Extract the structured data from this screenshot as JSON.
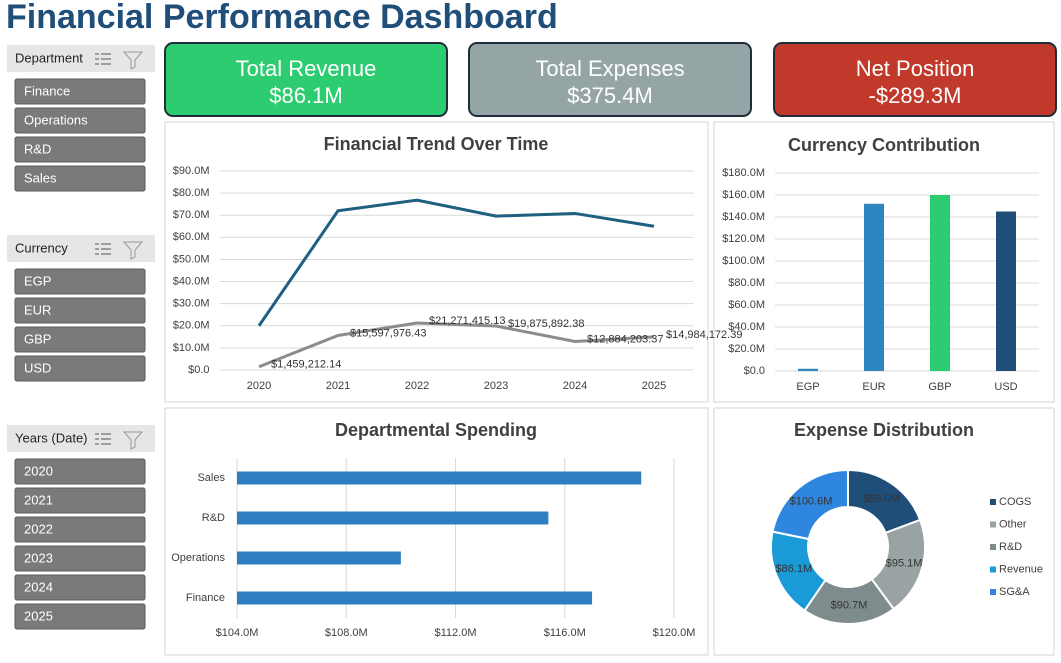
{
  "header": {
    "title": "Financial Performance Dashboard"
  },
  "slicers": [
    {
      "title": "Department",
      "items": [
        "Finance",
        "Operations",
        "R&D",
        "Sales"
      ]
    },
    {
      "title": "Currency",
      "items": [
        "EGP",
        "EUR",
        "GBP",
        "USD"
      ]
    },
    {
      "title": "Years (Date)",
      "items": [
        "2020",
        "2021",
        "2022",
        "2023",
        "2024",
        "2025"
      ]
    }
  ],
  "kpis": [
    {
      "label": "Total Revenue",
      "value": "$86.1M",
      "color": "#2ecc71"
    },
    {
      "label": "Total Expenses",
      "value": "$375.4M",
      "color": "#95a5a6"
    },
    {
      "label": "Net Position",
      "value": "-$289.3M",
      "color": "#c0392b"
    }
  ],
  "chart_data": [
    {
      "type": "line",
      "title": "Financial Trend Over Time",
      "categories": [
        "2020",
        "2021",
        "2022",
        "2023",
        "2024",
        "2025"
      ],
      "series": [
        {
          "color": "#1f5f7f",
          "values": [
            20,
            72,
            76.8,
            69.6,
            70.8,
            65
          ]
        },
        {
          "color": "#8c8c8c",
          "values": [
            1.45921214,
            15.59797643,
            21.27141513,
            19.87589238,
            12.88420337,
            14.98417239
          ],
          "value_labels": [
            "$1,459,212.14",
            "$15,597,976.43",
            "$21,271,415.13",
            "$19,875,892.38",
            "$12,884,203.37",
            "$14,984,172.39"
          ]
        }
      ],
      "ylim": [
        0,
        90
      ],
      "yticks": [
        {
          "value": 0,
          "label": "$0.0"
        },
        {
          "value": 10,
          "label": "$10.0M"
        },
        {
          "value": 20,
          "label": "$20.0M"
        },
        {
          "value": 30,
          "label": "$30.0M"
        },
        {
          "value": 40,
          "label": "$40.0M"
        },
        {
          "value": 50,
          "label": "$50.0M"
        },
        {
          "value": 60,
          "label": "$60.0M"
        },
        {
          "value": 70,
          "label": "$70.0M"
        },
        {
          "value": 80,
          "label": "$80.0M"
        },
        {
          "value": 90,
          "label": "$90.0M"
        }
      ],
      "grid": true
    },
    {
      "type": "bar",
      "title": "Currency Contribution",
      "categories": [
        "EGP",
        "EUR",
        "GBP",
        "USD"
      ],
      "values": [
        2,
        152,
        160,
        145
      ],
      "colors": [
        "#2e86c1",
        "#2e86c1",
        "#2ecc71",
        "#1f4e79"
      ],
      "ylim": [
        0,
        180
      ],
      "yticks": [
        {
          "value": 0,
          "label": "$0.0"
        },
        {
          "value": 20,
          "label": "$20.0M"
        },
        {
          "value": 40,
          "label": "$40.0M"
        },
        {
          "value": 60,
          "label": "$60.0M"
        },
        {
          "value": 80,
          "label": "$80.0M"
        },
        {
          "value": 100,
          "label": "$100.0M"
        },
        {
          "value": 120,
          "label": "$120.0M"
        },
        {
          "value": 140,
          "label": "$140.0M"
        },
        {
          "value": 160,
          "label": "$160.0M"
        },
        {
          "value": 180,
          "label": "$180.0M"
        }
      ],
      "grid": true
    },
    {
      "type": "hbar",
      "title": "Departmental Spending",
      "categories": [
        "Finance",
        "Operations",
        "R&D",
        "Sales"
      ],
      "values": [
        117.0,
        110.0,
        115.4,
        118.8
      ],
      "color": "#2e7fc1",
      "xlim": [
        104,
        120
      ],
      "xticks": [
        {
          "value": 104,
          "label": "$104.0M"
        },
        {
          "value": 108,
          "label": "$108.0M"
        },
        {
          "value": 112,
          "label": "$112.0M"
        },
        {
          "value": 116,
          "label": "$116.0M"
        },
        {
          "value": 120,
          "label": "$120.0M"
        }
      ],
      "grid": true
    },
    {
      "type": "donut",
      "title": "Expense Distribution",
      "categories": [
        "COGS",
        "Other",
        "R&D",
        "Revenue",
        "SG&A"
      ],
      "values": [
        89.0,
        95.1,
        90.7,
        86.1,
        100.6
      ],
      "value_labels": [
        "$89.0M",
        "$95.1M",
        "$90.7M",
        "$86.1M",
        "$100.6M"
      ],
      "colors": [
        "#1f4e79",
        "#99a3a4",
        "#7f8c8d",
        "#1a9bd7",
        "#2e86de"
      ]
    }
  ]
}
